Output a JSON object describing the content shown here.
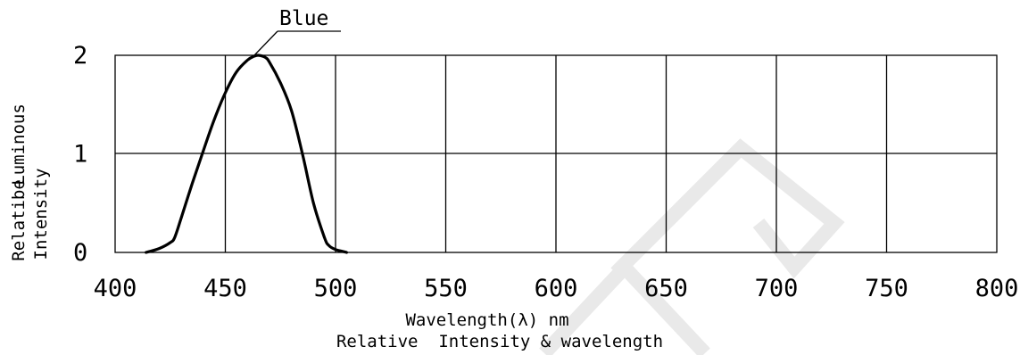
{
  "chart_data": {
    "type": "line",
    "xlabel": "Wavelength(λ) nm",
    "caption": "Relative  Intensity & wavelength",
    "ylabel_line1": "Luminous",
    "ylabel_line2": "Relatibe",
    "ylabel_line3": "Intensity",
    "xlim": [
      400,
      800
    ],
    "ylim": [
      0,
      2
    ],
    "x_ticks": [
      "400",
      "450",
      "500",
      "550",
      "600",
      "650",
      "700",
      "750",
      "800"
    ],
    "y_ticks": [
      "0",
      "1",
      "2"
    ],
    "grid": true,
    "series": [
      {
        "name": "Blue",
        "x": [
          414,
          420,
          425,
          427,
          430,
          435,
          440,
          445,
          450,
          455,
          460,
          463,
          465,
          468,
          470,
          475,
          480,
          485,
          490,
          495,
          497,
          500,
          505
        ],
        "y": [
          0.0,
          0.04,
          0.1,
          0.15,
          0.35,
          0.7,
          1.03,
          1.35,
          1.62,
          1.83,
          1.95,
          1.99,
          2.0,
          1.98,
          1.93,
          1.72,
          1.44,
          1.0,
          0.5,
          0.15,
          0.07,
          0.03,
          0.0
        ]
      }
    ]
  }
}
